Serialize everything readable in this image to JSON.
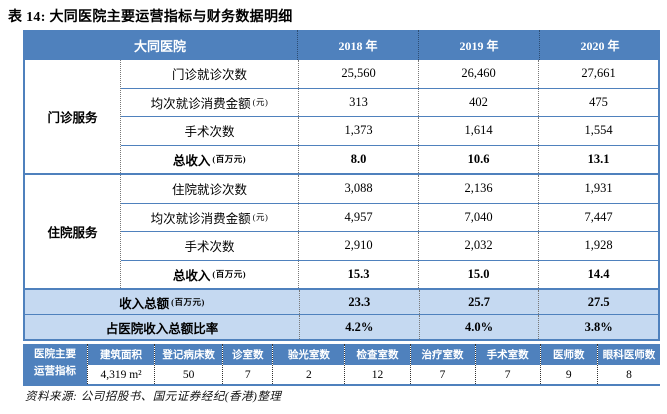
{
  "title": "表 14: 大同医院主要运营指标与财务数据明细",
  "colors": {
    "header_blue": "#4F81BD",
    "summary_light_blue": "#C5D9F1",
    "border_blue": "#4F81BD"
  },
  "table": {
    "header": {
      "hospital": "大同医院",
      "years": [
        "2018 年",
        "2019 年",
        "2020 年"
      ]
    },
    "sections": [
      {
        "label": "门诊服务",
        "rows": [
          {
            "label": "门诊就诊次数",
            "unit": "",
            "values": [
              "25,560",
              "26,460",
              "27,661"
            ]
          },
          {
            "label": "均次就诊消费金额",
            "unit": "(元)",
            "values": [
              "313",
              "402",
              "475"
            ]
          },
          {
            "label": "手术次数",
            "unit": "",
            "values": [
              "1,373",
              "1,614",
              "1,554"
            ]
          },
          {
            "label": "总收入",
            "unit": "(百万元)",
            "values": [
              "8.0",
              "10.6",
              "13.1"
            ]
          }
        ]
      },
      {
        "label": "住院服务",
        "rows": [
          {
            "label": "住院就诊次数",
            "unit": "",
            "values": [
              "3,088",
              "2,136",
              "1,931"
            ]
          },
          {
            "label": "均次就诊消费金额",
            "unit": "(元)",
            "values": [
              "4,957",
              "7,040",
              "7,447"
            ]
          },
          {
            "label": "手术次数",
            "unit": "",
            "values": [
              "2,910",
              "2,032",
              "1,928"
            ]
          },
          {
            "label": "总收入",
            "unit": "(百万元)",
            "values": [
              "15.3",
              "15.0",
              "14.4"
            ]
          }
        ]
      }
    ],
    "summary_rows": [
      {
        "label": "收入总额",
        "unit": "(百万元)",
        "values": [
          "23.3",
          "25.7",
          "27.5"
        ]
      },
      {
        "label": "占医院收入总额比率",
        "unit": "",
        "values": [
          "4.2%",
          "4.0%",
          "3.8%"
        ]
      }
    ],
    "indicators": {
      "label_line1": "医院主要",
      "label_line2": "运营指标",
      "items": [
        {
          "name": "建筑面积",
          "value": "4,319 m²"
        },
        {
          "name": "登记病床数",
          "value": "50"
        },
        {
          "name": "诊室数",
          "value": "7"
        },
        {
          "name": "验光室数",
          "value": "2"
        },
        {
          "name": "检查室数",
          "value": "12"
        },
        {
          "name": "治疗室数",
          "value": "7"
        },
        {
          "name": "手术室数",
          "value": "7"
        },
        {
          "name": "医师数",
          "value": "9"
        },
        {
          "name": "眼科医师数",
          "value": "8"
        }
      ]
    }
  },
  "footer": "资料来源: 公司招股书、国元证券经纪(香港)整理"
}
